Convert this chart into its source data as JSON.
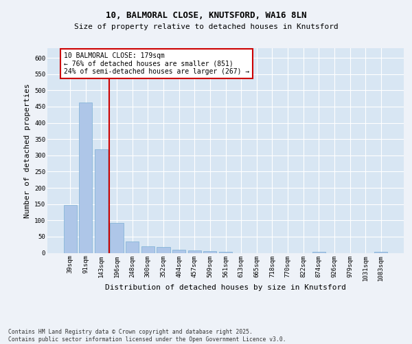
{
  "title_line1": "10, BALMORAL CLOSE, KNUTSFORD, WA16 8LN",
  "title_line2": "Size of property relative to detached houses in Knutsford",
  "xlabel": "Distribution of detached houses by size in Knutsford",
  "ylabel": "Number of detached properties",
  "categories": [
    "39sqm",
    "91sqm",
    "143sqm",
    "196sqm",
    "248sqm",
    "300sqm",
    "352sqm",
    "404sqm",
    "457sqm",
    "509sqm",
    "561sqm",
    "613sqm",
    "665sqm",
    "718sqm",
    "770sqm",
    "822sqm",
    "874sqm",
    "926sqm",
    "979sqm",
    "1031sqm",
    "1083sqm"
  ],
  "values": [
    148,
    463,
    318,
    93,
    35,
    21,
    19,
    10,
    7,
    5,
    3,
    0,
    0,
    0,
    0,
    0,
    3,
    0,
    0,
    0,
    3
  ],
  "bar_color": "#aec6e8",
  "bar_edgecolor": "#7bafd4",
  "vline_color": "#cc0000",
  "vline_pos": 2.5,
  "annotation_text": "10 BALMORAL CLOSE: 179sqm\n← 76% of detached houses are smaller (851)\n24% of semi-detached houses are larger (267) →",
  "annotation_box_edgecolor": "#cc0000",
  "background_color": "#eef2f8",
  "plot_bg_color": "#d8e6f3",
  "grid_color": "#ffffff",
  "ylim": [
    0,
    630
  ],
  "yticks": [
    0,
    50,
    100,
    150,
    200,
    250,
    300,
    350,
    400,
    450,
    500,
    550,
    600
  ],
  "footer_text": "Contains HM Land Registry data © Crown copyright and database right 2025.\nContains public sector information licensed under the Open Government Licence v3.0.",
  "title_fontsize": 9,
  "subtitle_fontsize": 8,
  "tick_fontsize": 6.5,
  "label_fontsize": 8,
  "annotation_fontsize": 7,
  "footer_fontsize": 5.8
}
